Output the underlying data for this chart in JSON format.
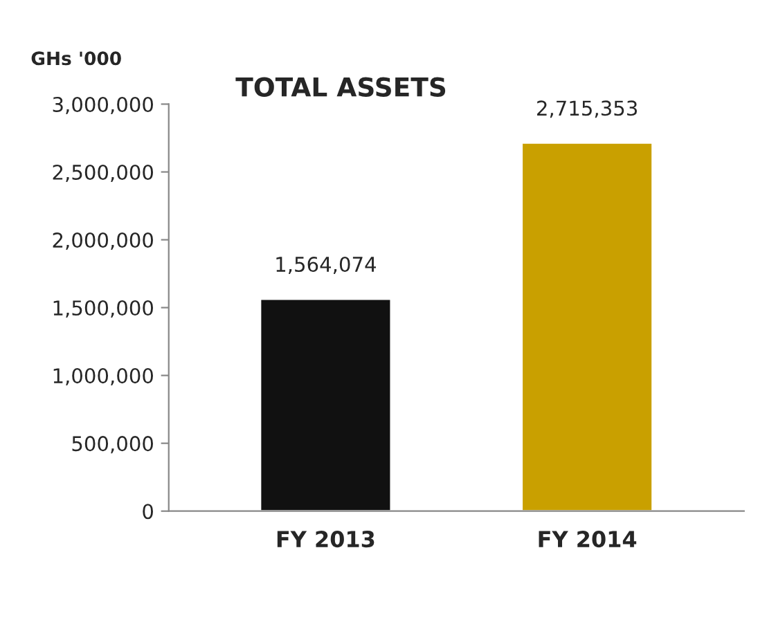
{
  "chart_data": {
    "type": "bar",
    "title": "TOTAL ASSETS",
    "ylabel": "GHs '000",
    "categories": [
      "FY 2013",
      "FY 2014"
    ],
    "values": [
      1564074,
      2715353
    ],
    "colors": [
      "#111111",
      "#c9a000"
    ],
    "ylim": [
      0,
      3000000
    ],
    "yticks": [
      {
        "value": 0,
        "label": "0"
      },
      {
        "value": 500000,
        "label": "500,000"
      },
      {
        "value": 1000000,
        "label": "1,000,000"
      },
      {
        "value": 1500000,
        "label": "1,500,000"
      },
      {
        "value": 2000000,
        "label": "2,000,000"
      },
      {
        "value": 2500000,
        "label": "2,500,000"
      },
      {
        "value": 3000000,
        "label": "3,000,000"
      }
    ],
    "value_labels": [
      "1,564,074",
      "2,715,353"
    ],
    "grid": false,
    "legend": false
  }
}
